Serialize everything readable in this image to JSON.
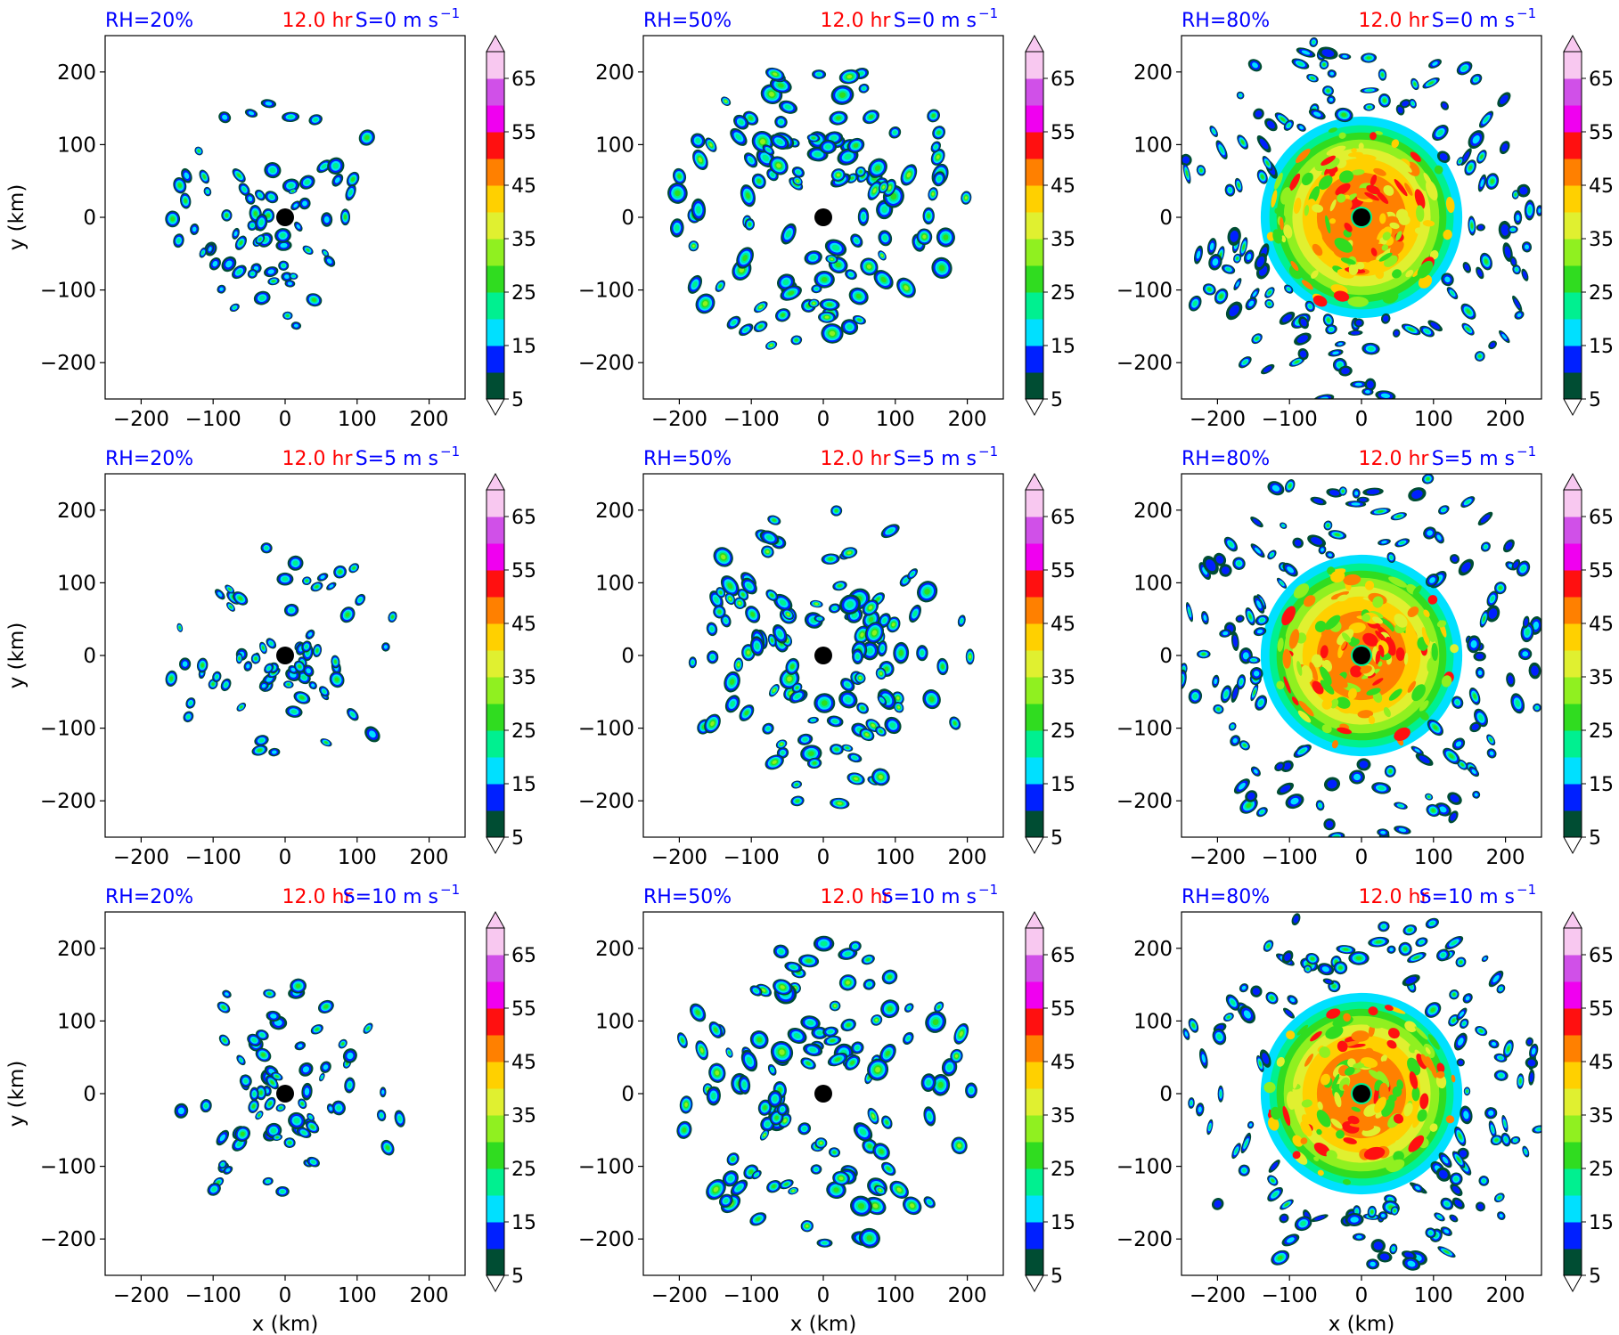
{
  "figure": {
    "rows": [
      {
        "shear_label": "S=0 m s",
        "ylabel": "y (km)"
      },
      {
        "shear_label": "S=5 m s",
        "ylabel": "y (km)"
      },
      {
        "shear_label": "S=10 m s",
        "ylabel": "y (km)"
      }
    ],
    "columns": [
      {
        "rh_label": "RH=20%",
        "xlabel": "x (km)"
      },
      {
        "rh_label": "RH=50%",
        "xlabel": "x (km)"
      },
      {
        "rh_label": "RH=80%",
        "xlabel": "x (km)"
      }
    ],
    "time_label": "12.0 hr",
    "shear_exponent": "−1",
    "colors": {
      "rh_label": "#0000ff",
      "time_label": "#ff0000",
      "shear_label": "#0000ff",
      "center_marker": "#000000"
    }
  },
  "chart_data": {
    "type": "contour-filled map panels",
    "grid": {
      "rows": 3,
      "cols": 3
    },
    "xlim": [
      -250,
      250
    ],
    "ylim": [
      -250,
      250
    ],
    "xticks": [
      -200,
      -100,
      0,
      100,
      200
    ],
    "yticks": [
      -200,
      -100,
      0,
      100,
      200
    ],
    "tick_labels": [
      "−200",
      "−100",
      "0",
      "100",
      "200"
    ],
    "storm_center": [
      0,
      0
    ],
    "colorbar": {
      "levels": [
        5,
        10,
        15,
        20,
        25,
        30,
        35,
        40,
        45,
        50,
        55,
        60,
        65,
        70
      ],
      "tick_values": [
        5,
        15,
        25,
        35,
        45,
        55,
        65
      ],
      "tick_labels": [
        "5",
        "15",
        "25",
        "35",
        "45",
        "55",
        "65"
      ],
      "extend": "both",
      "colors": [
        "#004d33",
        "#0020ff",
        "#00e0ff",
        "#00f090",
        "#30dc20",
        "#90f020",
        "#e0f030",
        "#ffd000",
        "#ff8000",
        "#ff1010",
        "#f000f0",
        "#d050e8",
        "#f8c8f0"
      ]
    },
    "panels": [
      {
        "row": 0,
        "col": 0,
        "rh": "RH=20%",
        "shear": "S=0",
        "time": "12.0 hr",
        "coverage": "sparse"
      },
      {
        "row": 0,
        "col": 1,
        "rh": "RH=50%",
        "shear": "S=0",
        "time": "12.0 hr",
        "coverage": "moderate"
      },
      {
        "row": 0,
        "col": 2,
        "rh": "RH=80%",
        "shear": "S=0",
        "time": "12.0 hr",
        "coverage": "dense"
      },
      {
        "row": 1,
        "col": 0,
        "rh": "RH=20%",
        "shear": "S=5",
        "time": "12.0 hr",
        "coverage": "sparse"
      },
      {
        "row": 1,
        "col": 1,
        "rh": "RH=50%",
        "shear": "S=5",
        "time": "12.0 hr",
        "coverage": "moderate"
      },
      {
        "row": 1,
        "col": 2,
        "rh": "RH=80%",
        "shear": "S=5",
        "time": "12.0 hr",
        "coverage": "dense"
      },
      {
        "row": 2,
        "col": 0,
        "rh": "RH=20%",
        "shear": "S=10",
        "time": "12.0 hr",
        "coverage": "sparse"
      },
      {
        "row": 2,
        "col": 1,
        "rh": "RH=50%",
        "shear": "S=10",
        "time": "12.0 hr",
        "coverage": "moderate"
      },
      {
        "row": 2,
        "col": 2,
        "rh": "RH=80%",
        "shear": "S=10",
        "time": "12.0 hr",
        "coverage": "dense"
      }
    ]
  }
}
